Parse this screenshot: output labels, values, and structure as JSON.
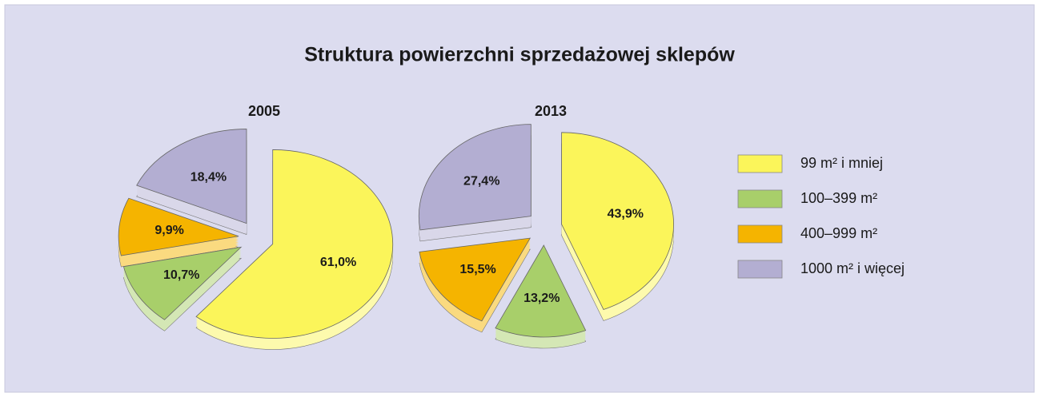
{
  "title": "Struktura powierzchni sprzedażowej sklepów",
  "legend": {
    "names": [
      "99 m² i mniej",
      "100–399 m²",
      "400–999 m²",
      "1000 m² i więcej"
    ],
    "colors": [
      "#fbf55a",
      "#a8cf6a",
      "#f5b400",
      "#b3aed2"
    ]
  },
  "chart_data": [
    {
      "type": "pie",
      "title": "2005",
      "values": [
        61.0,
        10.7,
        9.9,
        18.4
      ],
      "value_labels": [
        "61,0%",
        "10,7%",
        "9,9%",
        "18,4%"
      ],
      "colors": [
        "#fbf55a",
        "#a8cf6a",
        "#f5b400",
        "#b3aed2"
      ]
    },
    {
      "type": "pie",
      "title": "2013",
      "values": [
        43.9,
        13.2,
        15.5,
        27.4
      ],
      "value_labels": [
        "43,9%",
        "13,2%",
        "15,5%",
        "27,4%"
      ],
      "colors": [
        "#fbf55a",
        "#a8cf6a",
        "#f5b400",
        "#b3aed2"
      ]
    }
  ]
}
